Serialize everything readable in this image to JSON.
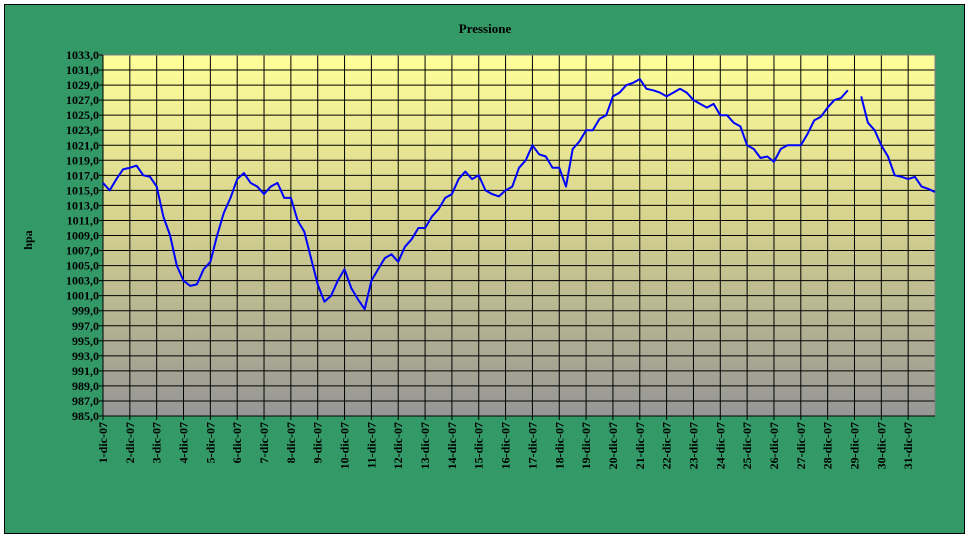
{
  "chart_data": {
    "type": "line",
    "title": "Pressione",
    "y_label": "hpa",
    "x": [
      0,
      0.25,
      0.5,
      0.75,
      1,
      1.25,
      1.5,
      1.75,
      2,
      2.25,
      2.5,
      2.75,
      3,
      3.25,
      3.5,
      3.75,
      4,
      4.25,
      4.5,
      4.75,
      5,
      5.25,
      5.5,
      5.75,
      6,
      6.25,
      6.5,
      6.75,
      7,
      7.25,
      7.5,
      7.75,
      8,
      8.25,
      8.5,
      8.75,
      9,
      9.25,
      9.5,
      9.75,
      10,
      10.25,
      10.5,
      10.75,
      11,
      11.25,
      11.5,
      11.75,
      12,
      12.25,
      12.5,
      12.75,
      13,
      13.25,
      13.5,
      13.75,
      14,
      14.25,
      14.5,
      14.75,
      15,
      15.25,
      15.5,
      15.75,
      16,
      16.25,
      16.5,
      16.75,
      17,
      17.25,
      17.5,
      17.75,
      18,
      18.25,
      18.5,
      18.75,
      19,
      19.25,
      19.5,
      19.75,
      20,
      20.25,
      20.5,
      20.75,
      21,
      21.25,
      21.5,
      21.75,
      22,
      22.25,
      22.5,
      22.75,
      23,
      23.25,
      23.5,
      23.75,
      24,
      24.25,
      24.5,
      24.75,
      25,
      25.25,
      25.5,
      25.75,
      26,
      26.25,
      26.5,
      26.75,
      27,
      27.25,
      27.5,
      27.75,
      28,
      28.25,
      28.5,
      28.75,
      29,
      29.25,
      29.5,
      29.75,
      30,
      30.25,
      30.5,
      30.75,
      31
    ],
    "series": [
      {
        "name": "Pressione",
        "color": "#0000ff",
        "values": [
          1016,
          1015,
          1016.5,
          1017.8,
          1018,
          1018.3,
          1017,
          1016.8,
          1015.5,
          1011.5,
          1009,
          1005,
          1003,
          1002.3,
          1002.5,
          1004.5,
          1005.5,
          1009,
          1012,
          1014,
          1016.5,
          1017.3,
          1016,
          1015.5,
          1014.5,
          1015.5,
          1016,
          1014,
          1014,
          1011,
          1009.5,
          1006,
          1002.5,
          1000.2,
          1001,
          1003,
          1004.5,
          1002,
          1000.5,
          999.2,
          1003,
          1004.5,
          1006,
          1006.5,
          1005.5,
          1007.5,
          1008.5,
          1010,
          1010,
          1011.5,
          1012.5,
          1014,
          1014.5,
          1016.5,
          1017.5,
          1016.5,
          1017,
          1015,
          1014.5,
          1014.2,
          1015,
          1015.5,
          1018,
          1019,
          1021,
          1019.8,
          1019.5,
          1018,
          1018,
          1015.5,
          1020.5,
          1021.5,
          1023,
          1023,
          1024.5,
          1025,
          1027.5,
          1028,
          1029,
          1029.3,
          1029.8,
          1028.5,
          1028.3,
          1028,
          1027.5,
          1028,
          1028.5,
          1028,
          1027,
          1026.5,
          1026,
          1026.5,
          1025,
          1025,
          1024,
          1023.5,
          1021,
          1020.5,
          1019.3,
          1019.5,
          1018.8,
          1020.5,
          1021,
          1021,
          1021,
          1022.5,
          1024.3,
          1024.8,
          1026,
          1027,
          1027.3,
          1028.3,
          null,
          1027.5,
          1024,
          1023,
          1021,
          1019.5,
          1017,
          1016.8,
          1016.5,
          1016.8,
          1015.5,
          1015.2,
          1014.8
        ]
      }
    ],
    "xlim": [
      0,
      31
    ],
    "xticks": [
      {
        "value": 0,
        "label": "1-dic-07"
      },
      {
        "value": 1,
        "label": "2-dic-07"
      },
      {
        "value": 2,
        "label": "3-dic-07"
      },
      {
        "value": 3,
        "label": "4-dic-07"
      },
      {
        "value": 4,
        "label": "5-dic-07"
      },
      {
        "value": 5,
        "label": "6-dic-07"
      },
      {
        "value": 6,
        "label": "7-dic-07"
      },
      {
        "value": 7,
        "label": "8-dic-07"
      },
      {
        "value": 8,
        "label": "9-dic-07"
      },
      {
        "value": 9,
        "label": "10-dic-07"
      },
      {
        "value": 10,
        "label": "11-dic-07"
      },
      {
        "value": 11,
        "label": "12-dic-07"
      },
      {
        "value": 12,
        "label": "13-dic-07"
      },
      {
        "value": 13,
        "label": "14-dic-07"
      },
      {
        "value": 14,
        "label": "15-dic-07"
      },
      {
        "value": 15,
        "label": "16-dic-07"
      },
      {
        "value": 16,
        "label": "17-dic-07"
      },
      {
        "value": 17,
        "label": "18-dic-07"
      },
      {
        "value": 18,
        "label": "19-dic-07"
      },
      {
        "value": 19,
        "label": "20-dic-07"
      },
      {
        "value": 20,
        "label": "21-dic-07"
      },
      {
        "value": 21,
        "label": "22-dic-07"
      },
      {
        "value": 22,
        "label": "23-dic-07"
      },
      {
        "value": 23,
        "label": "24-dic-07"
      },
      {
        "value": 24,
        "label": "25-dic-07"
      },
      {
        "value": 25,
        "label": "26-dic-07"
      },
      {
        "value": 26,
        "label": "27-dic-07"
      },
      {
        "value": 27,
        "label": "28-dic-07"
      },
      {
        "value": 28,
        "label": "29-dic-07"
      },
      {
        "value": 29,
        "label": "30-dic-07"
      },
      {
        "value": 30,
        "label": "31-dic-07"
      }
    ],
    "ylim": [
      985,
      1033
    ],
    "yticks": [
      {
        "value": 985,
        "label": "985,0"
      },
      {
        "value": 987,
        "label": "987,0"
      },
      {
        "value": 989,
        "label": "989,0"
      },
      {
        "value": 991,
        "label": "991,0"
      },
      {
        "value": 993,
        "label": "993,0"
      },
      {
        "value": 995,
        "label": "995,0"
      },
      {
        "value": 997,
        "label": "997,0"
      },
      {
        "value": 999,
        "label": "999,0"
      },
      {
        "value": 1001,
        "label": "1001,0"
      },
      {
        "value": 1003,
        "label": "1003,0"
      },
      {
        "value": 1005,
        "label": "1005,0"
      },
      {
        "value": 1007,
        "label": "1007,0"
      },
      {
        "value": 1009,
        "label": "1009,0"
      },
      {
        "value": 1011,
        "label": "1011,0"
      },
      {
        "value": 1013,
        "label": "1013,0"
      },
      {
        "value": 1015,
        "label": "1015,0"
      },
      {
        "value": 1017,
        "label": "1017,0"
      },
      {
        "value": 1019,
        "label": "1019,0"
      },
      {
        "value": 1021,
        "label": "1021,0"
      },
      {
        "value": 1023,
        "label": "1023,0"
      },
      {
        "value": 1025,
        "label": "1025,0"
      },
      {
        "value": 1027,
        "label": "1027,0"
      },
      {
        "value": 1029,
        "label": "1029,0"
      },
      {
        "value": 1031,
        "label": "1031,0"
      },
      {
        "value": 1033,
        "label": "1033,0"
      }
    ],
    "grid": true
  }
}
